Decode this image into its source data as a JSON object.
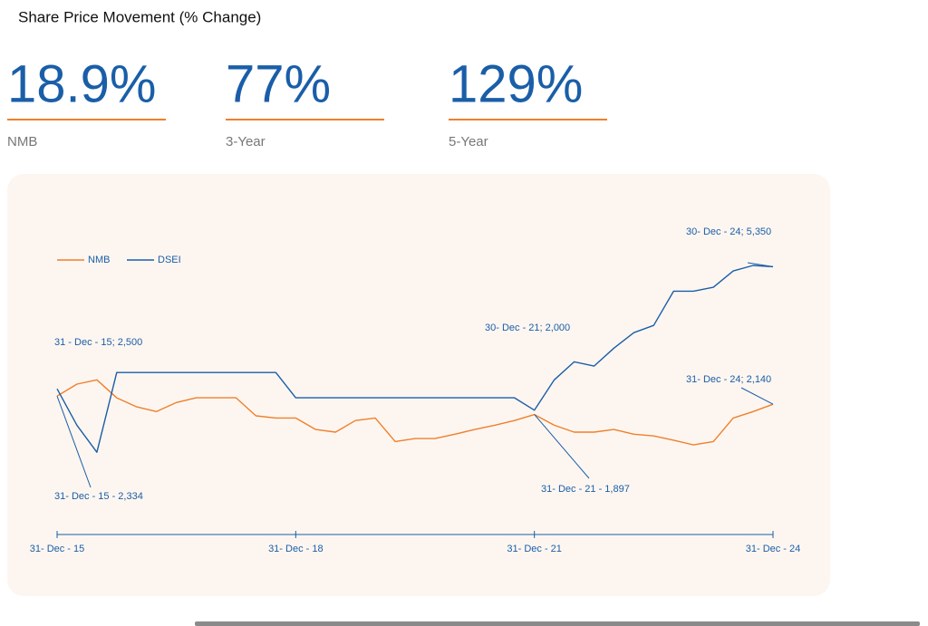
{
  "header": {
    "title": "Share Price Movement (% Change)"
  },
  "stats": [
    {
      "value": "18.9%",
      "label": "NMB"
    },
    {
      "value": "77%",
      "label": "3-Year"
    },
    {
      "value": "129%",
      "label": "5-Year"
    }
  ],
  "chart_data": {
    "type": "line",
    "series": [
      {
        "name": "NMB",
        "color": "#f07f2c",
        "values": [
          2330,
          2610,
          2710,
          2290,
          2080,
          1970,
          2180,
          2290,
          2290,
          2290,
          1870,
          1820,
          1820,
          1550,
          1490,
          1760,
          1820,
          1270,
          1340,
          1340,
          1440,
          1550,
          1650,
          1760,
          1900,
          1650,
          1490,
          1490,
          1550,
          1440,
          1400,
          1300,
          1190,
          1270,
          1820,
          1970,
          2140
        ]
      },
      {
        "name": "DSEI",
        "color": "#1a5ea8",
        "values": [
          2500,
          1650,
          1020,
          2880,
          2880,
          2880,
          2880,
          2880,
          2880,
          2880,
          2880,
          2880,
          2290,
          2290,
          2290,
          2290,
          2290,
          2290,
          2290,
          2290,
          2290,
          2290,
          2290,
          2290,
          2000,
          2710,
          3130,
          3030,
          3450,
          3810,
          3980,
          4780,
          4780,
          4870,
          5250,
          5380,
          5350
        ]
      }
    ],
    "xlim": [
      0,
      36
    ],
    "xticks": [
      {
        "value": 0,
        "label": "31- Dec - 15"
      },
      {
        "value": 12,
        "label": "31- Dec - 18"
      },
      {
        "value": 24,
        "label": "31- Dec - 21"
      },
      {
        "value": 36,
        "label": "31- Dec - 24"
      }
    ],
    "ylim": [
      -900,
      6500
    ],
    "legend": "top-left",
    "annotations": [
      "31 - Dec - 15; 2,500",
      "31- Dec - 15 - 2,334",
      "30- Dec - 21; 2,000",
      "31- Dec - 21 - 1,897",
      "30- Dec - 24; 5,350",
      "31- Dec - 24; 2,140"
    ]
  }
}
